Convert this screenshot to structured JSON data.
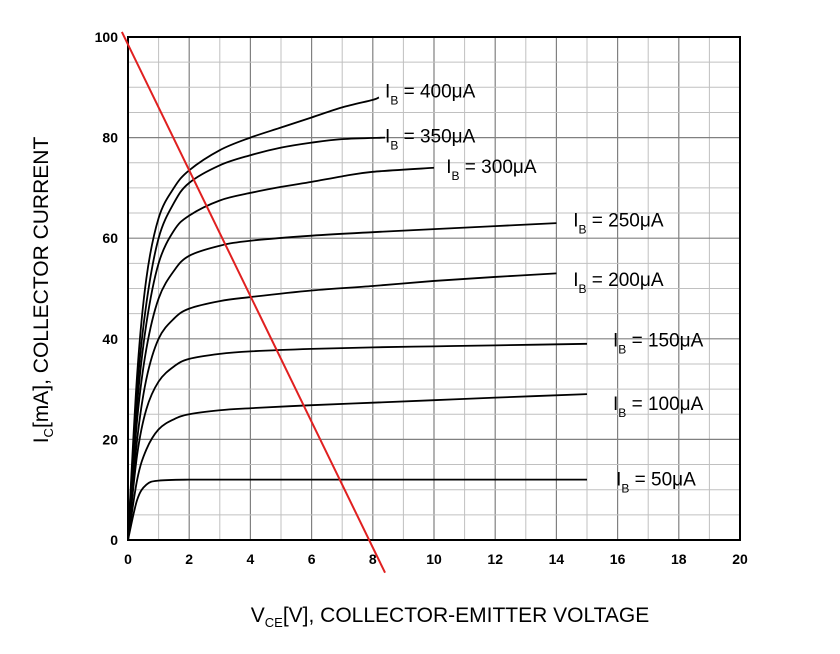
{
  "chart_data": {
    "type": "line",
    "xlabel": {
      "main": "V",
      "sub": "CE",
      "rest": "[V], COLLECTOR-EMITTER VOLTAGE"
    },
    "ylabel": {
      "main": "I",
      "sub": "C",
      "rest": "[mA], COLLECTOR CURRENT"
    },
    "xlim": [
      0,
      20
    ],
    "ylim": [
      0,
      100
    ],
    "xticks": [
      "0",
      "2",
      "4",
      "6",
      "8",
      "10",
      "12",
      "14",
      "16",
      "18",
      "20"
    ],
    "yticks": [
      "0",
      "20",
      "40",
      "60",
      "80",
      "100"
    ],
    "grid": true,
    "series": [
      {
        "name": "IB = 50μA",
        "label_main": "I",
        "label_sub": "B",
        "label_rest": " = 50μA",
        "color": "#000000",
        "points": [
          [
            0,
            0
          ],
          [
            0.3,
            8
          ],
          [
            0.6,
            11
          ],
          [
            1,
            11.8
          ],
          [
            2,
            12
          ],
          [
            4,
            12
          ],
          [
            8,
            12
          ],
          [
            15,
            12
          ]
        ]
      },
      {
        "name": "IB = 100μA",
        "label_main": "I",
        "label_sub": "B",
        "label_rest": " = 100μA",
        "color": "#000000",
        "points": [
          [
            0,
            0
          ],
          [
            0.3,
            12
          ],
          [
            0.6,
            18
          ],
          [
            1,
            22
          ],
          [
            1.5,
            24
          ],
          [
            2,
            25
          ],
          [
            3,
            25.8
          ],
          [
            4,
            26.2
          ],
          [
            6,
            26.8
          ],
          [
            8,
            27.3
          ],
          [
            10,
            27.8
          ],
          [
            12,
            28.3
          ],
          [
            15,
            29
          ]
        ]
      },
      {
        "name": "IB = 150μA",
        "label_main": "I",
        "label_sub": "B",
        "label_rest": " = 150μA",
        "color": "#000000",
        "points": [
          [
            0,
            0
          ],
          [
            0.3,
            17
          ],
          [
            0.6,
            26
          ],
          [
            1,
            31.5
          ],
          [
            1.5,
            34.5
          ],
          [
            2,
            36
          ],
          [
            3,
            37
          ],
          [
            4,
            37.5
          ],
          [
            6,
            38
          ],
          [
            8,
            38.3
          ],
          [
            10,
            38.5
          ],
          [
            12,
            38.7
          ],
          [
            15,
            39
          ]
        ]
      },
      {
        "name": "IB = 200μA",
        "label_main": "I",
        "label_sub": "B",
        "label_rest": " = 200μA",
        "color": "#000000",
        "points": [
          [
            0,
            0
          ],
          [
            0.3,
            20
          ],
          [
            0.6,
            32
          ],
          [
            1,
            40
          ],
          [
            1.5,
            44
          ],
          [
            2,
            46
          ],
          [
            3,
            47.5
          ],
          [
            4,
            48.3
          ],
          [
            6,
            49.6
          ],
          [
            8,
            50.5
          ],
          [
            10,
            51.5
          ],
          [
            12,
            52.3
          ],
          [
            14,
            53
          ]
        ]
      },
      {
        "name": "IB = 250μA",
        "label_main": "I",
        "label_sub": "B",
        "label_rest": " = 250μA",
        "color": "#000000",
        "points": [
          [
            0,
            0
          ],
          [
            0.3,
            24
          ],
          [
            0.6,
            38
          ],
          [
            1,
            48
          ],
          [
            1.5,
            53.5
          ],
          [
            2,
            56.5
          ],
          [
            3,
            58.5
          ],
          [
            4,
            59.5
          ],
          [
            6,
            60.5
          ],
          [
            8,
            61.2
          ],
          [
            10,
            61.8
          ],
          [
            12,
            62.4
          ],
          [
            14,
            63
          ]
        ]
      },
      {
        "name": "IB = 300μA",
        "label_main": "I",
        "label_sub": "B",
        "label_rest": " = 300μA",
        "color": "#000000",
        "points": [
          [
            0,
            0
          ],
          [
            0.3,
            27
          ],
          [
            0.6,
            43
          ],
          [
            1,
            55
          ],
          [
            1.5,
            61.5
          ],
          [
            2,
            64.5
          ],
          [
            3,
            67.5
          ],
          [
            4,
            69
          ],
          [
            5,
            70.2
          ],
          [
            6,
            71.2
          ],
          [
            7,
            72.3
          ],
          [
            8,
            73.2
          ],
          [
            10,
            74
          ]
        ]
      },
      {
        "name": "IB = 350μA",
        "label_main": "I",
        "label_sub": "B",
        "label_rest": " = 350μA",
        "color": "#000000",
        "points": [
          [
            0,
            0
          ],
          [
            0.3,
            30
          ],
          [
            0.6,
            47
          ],
          [
            1,
            60
          ],
          [
            1.5,
            67
          ],
          [
            2,
            71
          ],
          [
            3,
            74.5
          ],
          [
            4,
            76.5
          ],
          [
            5,
            78
          ],
          [
            6,
            79
          ],
          [
            7,
            79.7
          ],
          [
            8.4,
            80
          ]
        ]
      },
      {
        "name": "IB = 400μA",
        "label_main": "I",
        "label_sub": "B",
        "label_rest": " = 400μA",
        "color": "#000000",
        "points": [
          [
            0,
            0
          ],
          [
            0.3,
            33
          ],
          [
            0.6,
            52
          ],
          [
            1,
            64
          ],
          [
            1.5,
            70
          ],
          [
            2,
            73.5
          ],
          [
            3,
            77.5
          ],
          [
            4,
            80
          ],
          [
            5,
            82
          ],
          [
            6,
            84
          ],
          [
            7,
            86
          ],
          [
            8,
            87.5
          ],
          [
            8.2,
            88
          ]
        ]
      },
      {
        "name": "load line",
        "color": "#e02020",
        "points": [
          [
            -0.2,
            101
          ],
          [
            8.4,
            -6.5
          ]
        ]
      }
    ],
    "curve_label_positions": [
      {
        "x": 15.95,
        "y": 10.8
      },
      {
        "x": 15.85,
        "y": 25.8
      },
      {
        "x": 15.85,
        "y": 38.5
      },
      {
        "x": 14.55,
        "y": 50.5
      },
      {
        "x": 14.55,
        "y": 62.3
      },
      {
        "x": 10.4,
        "y": 73
      },
      {
        "x": 8.4,
        "y": 79
      },
      {
        "x": 8.4,
        "y": 88
      }
    ]
  }
}
